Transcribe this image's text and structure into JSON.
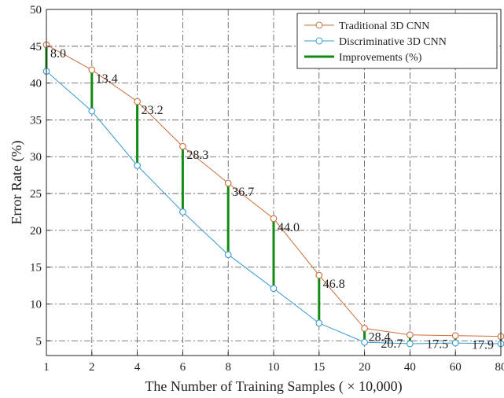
{
  "chart_data": {
    "type": "line",
    "title": "",
    "xlabel": "The Number of Training Samples ( × 10,000)",
    "ylabel": "Error Rate (%)",
    "ylim": [
      3,
      50
    ],
    "x": [
      1,
      2,
      4,
      6,
      8,
      10,
      15,
      20,
      40,
      60,
      80
    ],
    "x_tick_labels": [
      "1",
      "2",
      "4",
      "6",
      "8",
      "10",
      "15",
      "20",
      "40",
      "60",
      "80"
    ],
    "y_ticks": [
      5,
      10,
      15,
      20,
      25,
      30,
      35,
      40,
      45,
      50
    ],
    "y_tick_labels": [
      "5",
      "10",
      "15",
      "20",
      "25",
      "30",
      "35",
      "40",
      "45",
      "50"
    ],
    "grid": true,
    "legend_position": "top-right",
    "series": [
      {
        "name": "Traditional 3D CNN",
        "color": "#c8703c",
        "values": [
          45.2,
          41.8,
          37.5,
          31.4,
          26.4,
          21.6,
          13.9,
          6.7,
          5.8,
          5.7,
          5.6
        ]
      },
      {
        "name": "Discriminative 3D CNN",
        "color": "#3a9ad0",
        "values": [
          41.6,
          36.2,
          28.8,
          22.5,
          16.7,
          12.1,
          7.4,
          4.8,
          4.6,
          4.7,
          4.6
        ]
      }
    ],
    "improvements": {
      "name": "Improvements (%)",
      "color": "#138a13",
      "labels": [
        "8.0",
        "13.4",
        "23.2",
        "28.3",
        "36.7",
        "44.0",
        "46.8",
        "28.4",
        "20.7",
        "17.5",
        "17.9"
      ]
    }
  }
}
